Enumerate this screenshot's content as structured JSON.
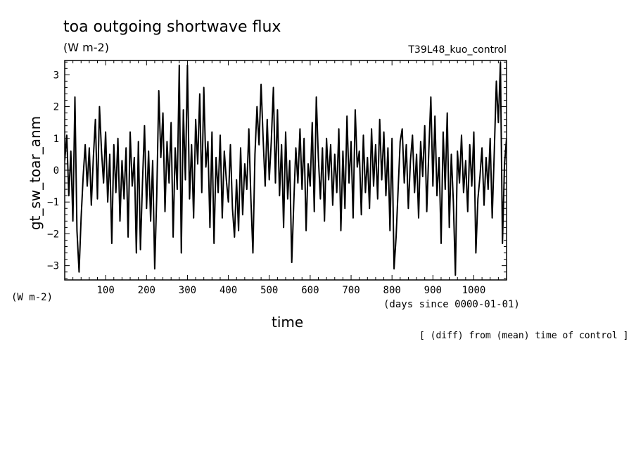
{
  "chart_data": {
    "type": "line",
    "title": "toa outgoing shortwave flux",
    "units": "(W m-2)",
    "y_units": "(W m-2)",
    "run_name": "T39L48_kuo_control",
    "xlabel": "time",
    "x_units": "(days since 0000-01-01)",
    "ylabel": "gt_sw_toar_anm",
    "note": "[ (diff) from (mean) time of control ]",
    "xlim": [
      0,
      1080
    ],
    "ylim": [
      -3.45,
      3.45
    ],
    "x_ticks": [
      100,
      200,
      300,
      400,
      500,
      600,
      700,
      800,
      900,
      1000
    ],
    "y_ticks": [
      -3,
      -2,
      -1,
      0,
      1,
      2,
      3
    ],
    "grid": false,
    "series": [
      {
        "x": [
          0,
          5,
          10,
          15,
          20,
          25,
          30,
          35,
          40,
          45,
          50,
          55,
          60,
          65,
          70,
          75,
          80,
          85,
          90,
          95,
          100,
          105,
          110,
          115,
          120,
          125,
          130,
          135,
          140,
          145,
          150,
          155,
          160,
          165,
          170,
          175,
          180,
          185,
          190,
          195,
          200,
          205,
          210,
          215,
          220,
          225,
          230,
          235,
          240,
          245,
          250,
          255,
          260,
          265,
          270,
          275,
          280,
          285,
          290,
          295,
          300,
          305,
          310,
          315,
          320,
          325,
          330,
          335,
          340,
          345,
          350,
          355,
          360,
          365,
          370,
          375,
          380,
          385,
          390,
          395,
          400,
          405,
          410,
          415,
          420,
          425,
          430,
          435,
          440,
          445,
          450,
          455,
          460,
          465,
          470,
          475,
          480,
          485,
          490,
          495,
          500,
          505,
          510,
          515,
          520,
          525,
          530,
          535,
          540,
          545,
          550,
          555,
          560,
          565,
          570,
          575,
          580,
          585,
          590,
          595,
          600,
          605,
          610,
          615,
          620,
          625,
          630,
          635,
          640,
          645,
          650,
          655,
          660,
          665,
          670,
          675,
          680,
          685,
          690,
          695,
          700,
          705,
          710,
          715,
          720,
          725,
          730,
          735,
          740,
          745,
          750,
          755,
          760,
          765,
          770,
          775,
          780,
          785,
          790,
          795,
          800,
          805,
          810,
          815,
          820,
          825,
          830,
          835,
          840,
          845,
          850,
          855,
          860,
          865,
          870,
          875,
          880,
          885,
          890,
          895,
          900,
          905,
          910,
          915,
          920,
          925,
          930,
          935,
          940,
          945,
          950,
          955,
          960,
          965,
          970,
          975,
          980,
          985,
          990,
          995,
          1000,
          1005,
          1010,
          1015,
          1020,
          1025,
          1030,
          1035,
          1040,
          1045,
          1050,
          1055,
          1060,
          1065,
          1070,
          1075,
          1080
        ],
        "y": [
          0.3,
          1.1,
          -0.8,
          0.6,
          -1.6,
          2.3,
          -1.9,
          -3.2,
          -1.5,
          -0.2,
          0.8,
          -0.5,
          0.7,
          -1.1,
          0.4,
          1.6,
          -0.9,
          2.0,
          0.6,
          -0.4,
          1.2,
          -1.0,
          0.5,
          -2.3,
          0.8,
          -0.7,
          1.0,
          -1.6,
          0.3,
          -0.9,
          0.7,
          -2.1,
          1.2,
          -0.5,
          0.4,
          -2.6,
          0.9,
          -2.5,
          -0.4,
          1.4,
          -1.2,
          0.6,
          -1.6,
          0.3,
          -3.1,
          -0.8,
          2.5,
          0.4,
          1.8,
          -1.3,
          0.9,
          -0.4,
          1.5,
          -2.1,
          0.7,
          -0.6,
          3.3,
          -2.6,
          1.9,
          -0.3,
          3.3,
          -0.9,
          0.8,
          -1.5,
          1.6,
          0.2,
          2.4,
          -0.7,
          2.6,
          0.1,
          0.9,
          -1.8,
          1.2,
          -2.3,
          0.4,
          -0.7,
          1.1,
          -1.5,
          0.6,
          -0.3,
          -1.0,
          0.8,
          -1.2,
          -2.1,
          -0.3,
          -1.9,
          0.7,
          -1.4,
          0.2,
          -0.6,
          1.3,
          -0.9,
          -2.6,
          0.5,
          2.0,
          0.8,
          2.7,
          1.0,
          -0.5,
          1.6,
          -0.3,
          0.9,
          2.6,
          -0.4,
          1.9,
          -0.8,
          0.8,
          -1.8,
          1.2,
          -0.9,
          0.3,
          -2.9,
          -1.0,
          0.7,
          -0.4,
          1.3,
          -0.6,
          1.0,
          -1.9,
          0.2,
          -0.5,
          1.5,
          -1.3,
          2.3,
          0.4,
          -0.9,
          0.7,
          -1.6,
          1.0,
          -0.3,
          0.8,
          -1.1,
          0.5,
          -0.7,
          1.3,
          -1.9,
          0.6,
          -1.2,
          1.7,
          -0.4,
          0.9,
          -1.5,
          1.9,
          0.1,
          0.6,
          -1.4,
          1.1,
          -0.7,
          0.4,
          -1.2,
          1.3,
          -0.5,
          0.8,
          -0.9,
          1.6,
          -0.3,
          1.2,
          -0.8,
          0.7,
          -1.9,
          1.0,
          -3.1,
          -2.1,
          -0.6,
          0.9,
          1.3,
          -0.4,
          0.8,
          -1.2,
          0.3,
          1.1,
          -0.7,
          0.5,
          -1.5,
          0.9,
          -0.2,
          1.4,
          -1.3,
          0.6,
          2.3,
          -0.5,
          1.7,
          -0.8,
          0.4,
          -2.3,
          1.2,
          -0.6,
          1.8,
          -1.8,
          0.5,
          -1.0,
          -3.3,
          0.6,
          -0.4,
          1.1,
          -0.7,
          0.3,
          -1.3,
          0.8,
          -0.5,
          1.2,
          -2.6,
          -0.9,
          -0.2,
          0.7,
          -1.1,
          0.4,
          -0.6,
          1.0,
          -1.5,
          0.6,
          2.8,
          1.5,
          3.4,
          -2.3,
          0.2,
          1.0
        ]
      }
    ]
  }
}
